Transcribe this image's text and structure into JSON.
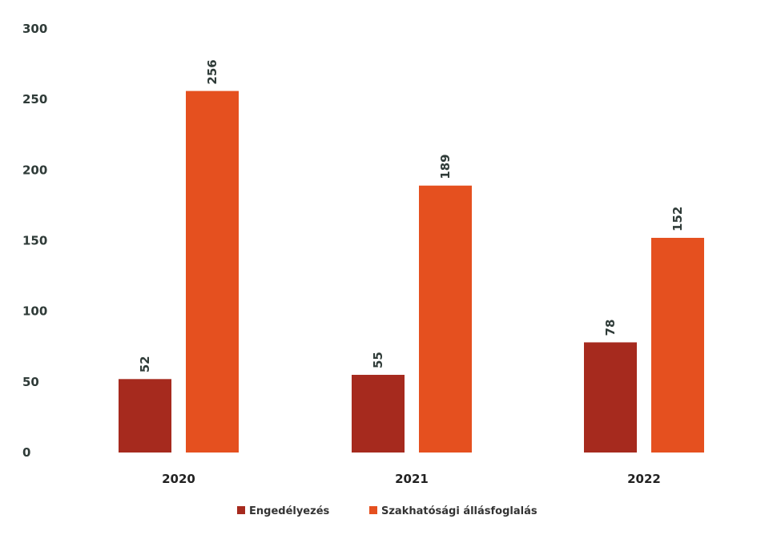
{
  "chart_data": {
    "type": "bar",
    "title": "",
    "xlabel": "",
    "ylabel": "",
    "categories": [
      "2020",
      "2021",
      "2022"
    ],
    "series": [
      {
        "name": "Engedélyezés",
        "values": [
          52,
          55,
          78
        ],
        "color": "#a62a1e"
      },
      {
        "name": "Szakhatósági állásfoglalás",
        "values": [
          256,
          189,
          152
        ],
        "color": "#e5501f"
      }
    ],
    "ylim": [
      0,
      300
    ],
    "yticks": [
      "0",
      "50",
      "100",
      "150",
      "200",
      "250",
      "300"
    ],
    "grid": false,
    "legend": "bottom-center",
    "data_labels": true
  }
}
